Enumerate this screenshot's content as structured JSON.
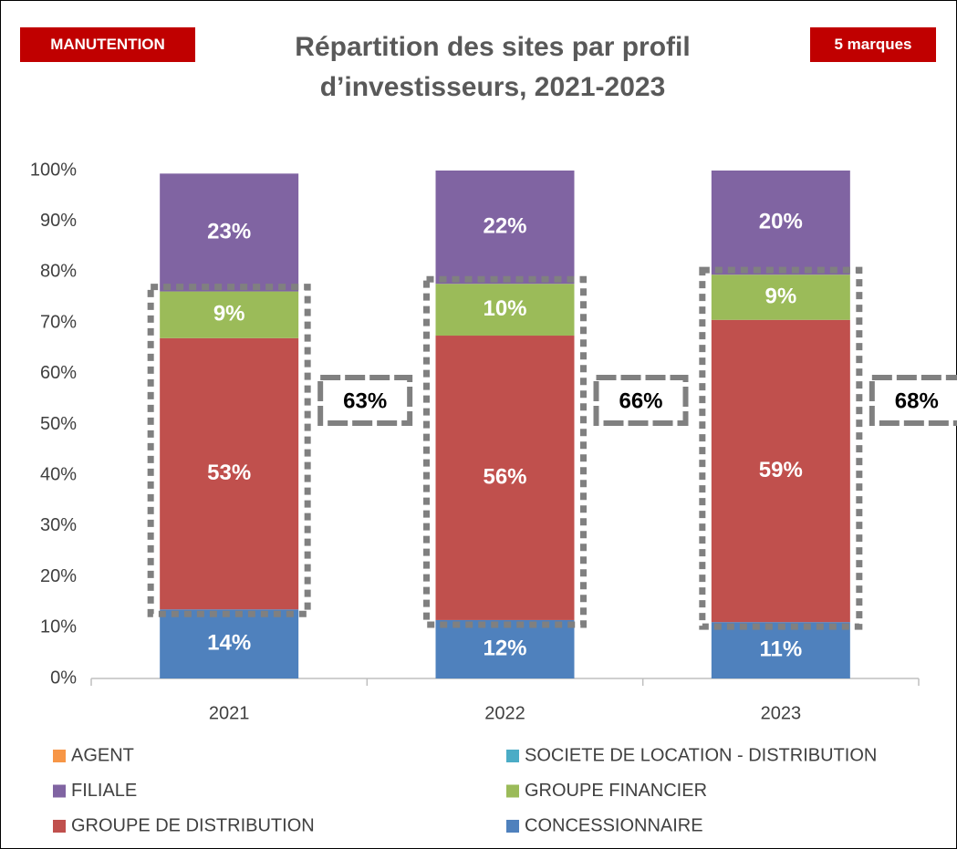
{
  "chart_data": {
    "type": "stacked_bar",
    "title": "Répartition des sites par profil d’investisseurs, 2021-2023",
    "badges": [
      "MANUTENTION",
      "5 marques"
    ],
    "categories": [
      "2021",
      "2022",
      "2023"
    ],
    "series": [
      {
        "name": "AGENT",
        "color": "#F79646",
        "values": [
          0,
          0,
          0
        ]
      },
      {
        "name": "SOCIETE DE LOCATION - DISTRIBUTION",
        "color": "#4BACC6",
        "values": [
          0,
          0,
          0
        ]
      },
      {
        "name": "FILIALE",
        "color": "#8064A2",
        "values": [
          23.2,
          22.3,
          20.5
        ],
        "value_labels": [
          "23%",
          "22%",
          "20%"
        ]
      },
      {
        "name": "GROUPE FINANCIER",
        "color": "#9BBB59",
        "values": [
          9.2,
          10.2,
          8.9
        ],
        "value_labels": [
          "9%",
          "10%",
          "9%"
        ]
      },
      {
        "name": "GROUPE DE DISTRIBUTION",
        "color": "#C0504D",
        "values": [
          53.4,
          56.0,
          59.5
        ],
        "value_labels": [
          "53%",
          "56%",
          "59%"
        ]
      },
      {
        "name": "CONCESSIONNAIRE",
        "color": "#4F81BD",
        "values": [
          13.6,
          11.5,
          11.1
        ],
        "value_labels": [
          "14%",
          "12%",
          "11%"
        ]
      }
    ],
    "annotations": [
      "63%",
      "66%",
      "68%"
    ],
    "ylim": [
      0,
      100
    ],
    "yticks": [
      {
        "value": 0,
        "label": "0%"
      },
      {
        "value": 10,
        "label": "10%"
      },
      {
        "value": 20,
        "label": "20%"
      },
      {
        "value": 30,
        "label": "30%"
      },
      {
        "value": 40,
        "label": "40%"
      },
      {
        "value": 50,
        "label": "50%"
      },
      {
        "value": 60,
        "label": "60%"
      },
      {
        "value": 70,
        "label": "70%"
      },
      {
        "value": 80,
        "label": "80%"
      },
      {
        "value": 90,
        "label": "90%"
      },
      {
        "value": 100,
        "label": "100%"
      }
    ],
    "grid": false
  }
}
